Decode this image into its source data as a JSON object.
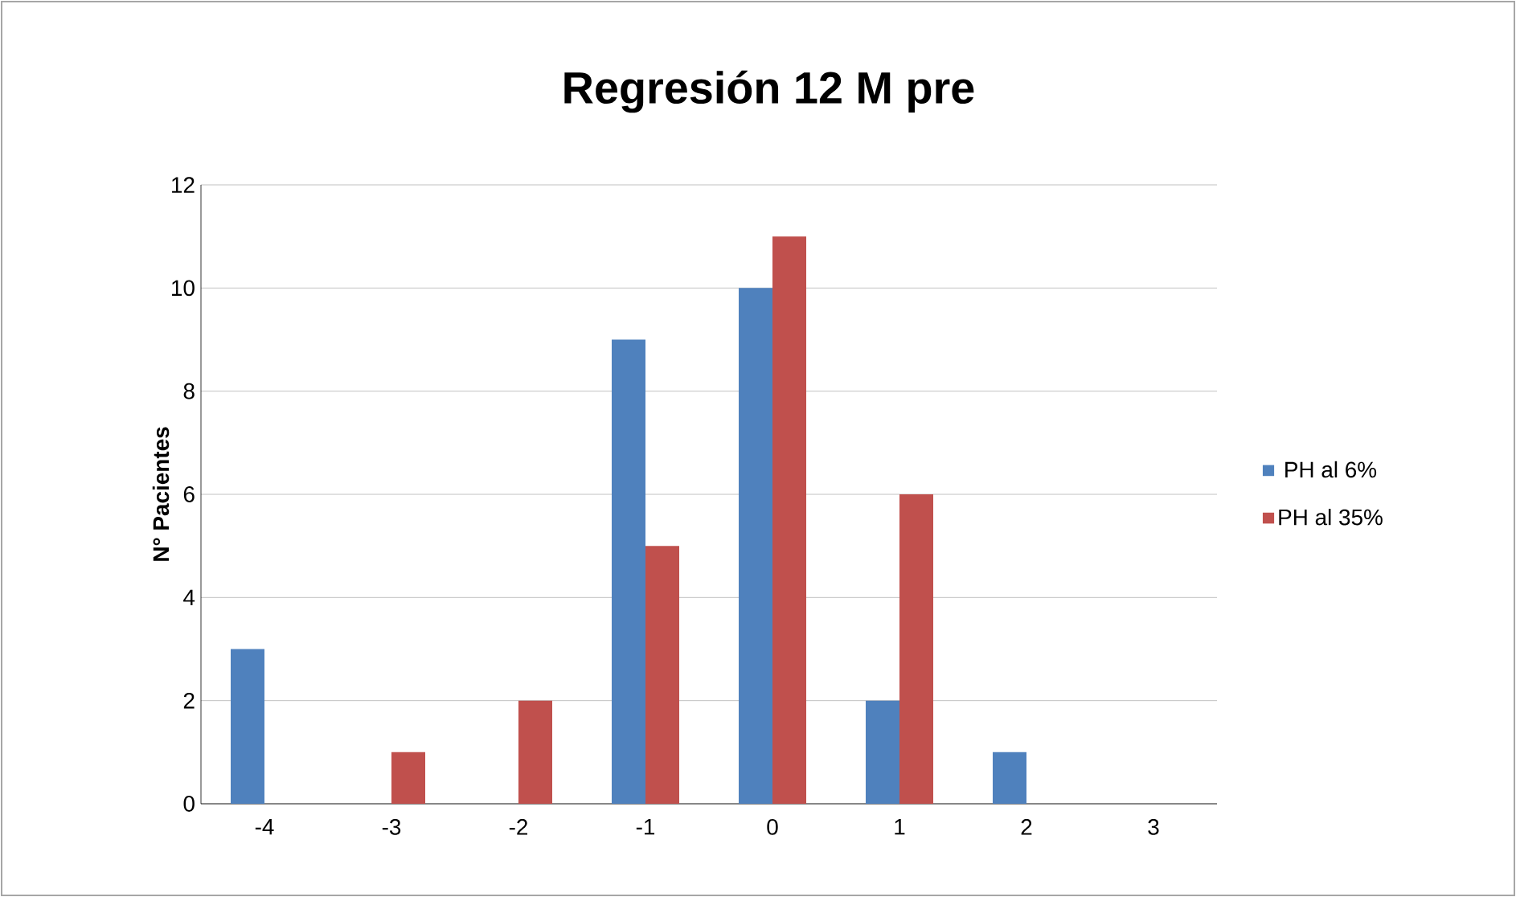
{
  "chart_data": {
    "type": "bar",
    "title": "Regresión 12 M pre",
    "ylabel": "N° Pacientes",
    "categories": [
      "-4",
      "-3",
      "-2",
      "-1",
      "0",
      "1",
      "2",
      "3"
    ],
    "series": [
      {
        "name": "PH al 6%",
        "color": "#4f81bd",
        "values": [
          3,
          0,
          0,
          9,
          10,
          2,
          1,
          0
        ]
      },
      {
        "name": "PH al 35%",
        "color": "#c0504d",
        "values": [
          0,
          1,
          2,
          5,
          11,
          6,
          0,
          0
        ]
      }
    ],
    "ylim": [
      0,
      12
    ],
    "yticks": [
      0,
      2,
      4,
      6,
      8,
      10,
      12
    ],
    "grid": "y",
    "legend": "right"
  }
}
